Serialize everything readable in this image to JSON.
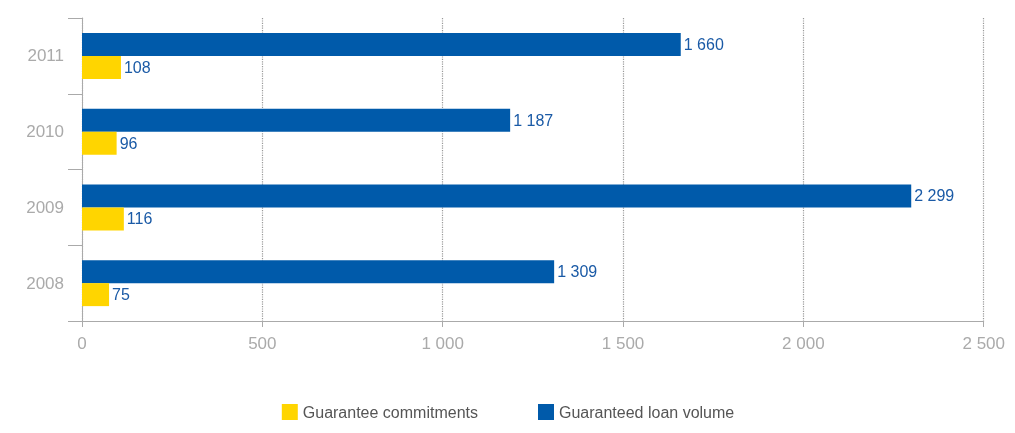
{
  "chart_data": {
    "type": "bar",
    "orientation": "horizontal",
    "categories": [
      "2011",
      "2010",
      "2009",
      "2008"
    ],
    "series": [
      {
        "name": "Guarantee commitments",
        "color": "#ffd500",
        "values": [
          108,
          96,
          116,
          75
        ],
        "value_labels": [
          "108",
          "96",
          "116",
          "75"
        ]
      },
      {
        "name": "Guaranteed loan volume",
        "color": "#005aaa",
        "values": [
          1660,
          1187,
          2299,
          1309
        ],
        "value_labels": [
          "1 660",
          "1 187",
          "2 299",
          "1 309"
        ]
      }
    ],
    "xlim": [
      0,
      2500
    ],
    "xticks": [
      0,
      500,
      {
        "value": 1000,
        "label": "1 000"
      },
      {
        "value": 1500,
        "label": "1 500"
      },
      {
        "value": 2000,
        "label": "2 000"
      },
      {
        "value": 2500,
        "label": "2 500"
      }
    ],
    "grid": "x",
    "legend": "bottom"
  }
}
